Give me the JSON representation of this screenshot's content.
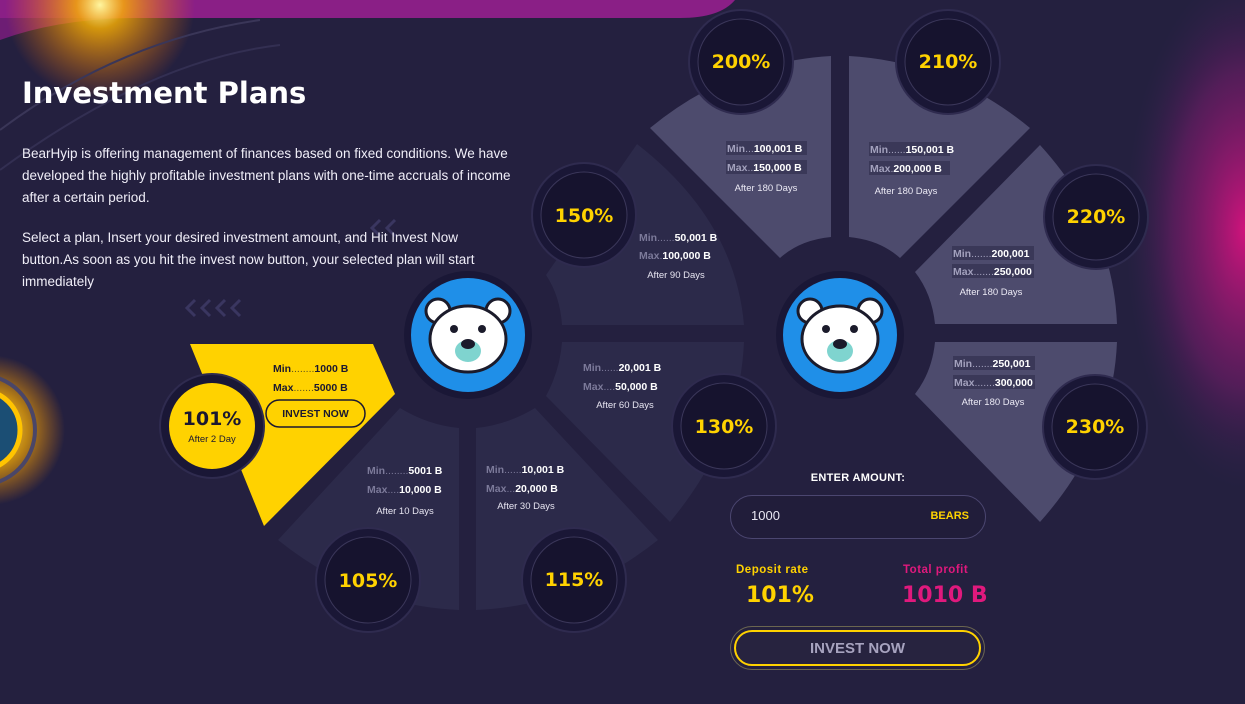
{
  "header": {
    "title": "Investment Plans",
    "description_1": "BearHyip is offering management of finances based on fixed conditions. We have developed the highly profitable investment plans with one-time accruals of income after a certain period.",
    "description_2": "Select a plan, Insert your desired investment amount, and Hit Invest Now button.As soon as you hit the invest now button, your selected plan will start immediately"
  },
  "left_wheel": {
    "plans": [
      {
        "percent": "101%",
        "min_label": "Min",
        "min_dots": "........",
        "min_value": "1000 B",
        "max_label": "Max",
        "max_dots": ".......",
        "max_value": "5000 B",
        "period": "After 2 Day",
        "selected": true,
        "button": "INVEST NOW"
      },
      {
        "percent": "105%",
        "min_label": "Min",
        "min_dots": "........",
        "min_value": "5001 B",
        "max_label": "Max",
        "max_dots": "....",
        "max_value": "10,000 B",
        "period": "After 10 Days"
      },
      {
        "percent": "115%",
        "min_label": "Min",
        "min_dots": "......",
        "min_value": "10,001 B",
        "max_label": "Max",
        "max_dots": "...",
        "max_value": "20,000 B",
        "period": "After 30 Days"
      },
      {
        "percent": "130%",
        "min_label": "Min",
        "min_dots": "......",
        "min_value": "20,001 B",
        "max_label": "Max",
        "max_dots": "....",
        "max_value": "50,000 B",
        "period": "After 60 Days"
      },
      {
        "percent": "150%",
        "min_label": "Min",
        "min_dots": "......",
        "min_value": "50,001 B",
        "max_label": "Max",
        "max_dots": ".",
        "max_value": "100,000 B",
        "period": "After 90 Days"
      }
    ]
  },
  "right_wheel": {
    "plans": [
      {
        "percent": "200%",
        "min_label": "Min",
        "min_dots": "...",
        "min_value": "100,001 B",
        "max_label": "Max",
        "max_dots": "..",
        "max_value": "150,000 B",
        "period": "After 180 Days"
      },
      {
        "percent": "210%",
        "min_label": "Min",
        "min_dots": "......",
        "min_value": "150,001 B",
        "max_label": "Max",
        "max_dots": ".",
        "max_value": "200,000 B",
        "period": "After 180 Days"
      },
      {
        "percent": "220%",
        "min_label": "Min",
        "min_dots": ".......",
        "min_value": "200,001",
        "max_label": "Max",
        "max_dots": ".......",
        "max_value": "250,000",
        "period": "After 180 Days"
      },
      {
        "percent": "230%",
        "min_label": "Min",
        "min_dots": ".......",
        "min_value": "250,001",
        "max_label": "Max",
        "max_dots": ".......",
        "max_value": "300,000",
        "period": "After 180 Days"
      }
    ]
  },
  "calculator": {
    "enter_amount_label": "ENTER AMOUNT:",
    "amount_value": "1000",
    "unit": "BEARS",
    "deposit_rate_label": "Deposit rate",
    "deposit_rate_value": "101%",
    "total_profit_label": "Total profit",
    "total_profit_value": "1010 B",
    "invest_button": "INVEST NOW"
  },
  "colors": {
    "background": "#24203f",
    "segment_dark": "#2c2a4a",
    "segment_light": "#4d4b6d",
    "accent_yellow": "#ffd200",
    "accent_pink": "#e0197d",
    "bear_blue": "#1f8fe8"
  },
  "icons": {
    "bear_logo": "polar-bear-icon"
  }
}
